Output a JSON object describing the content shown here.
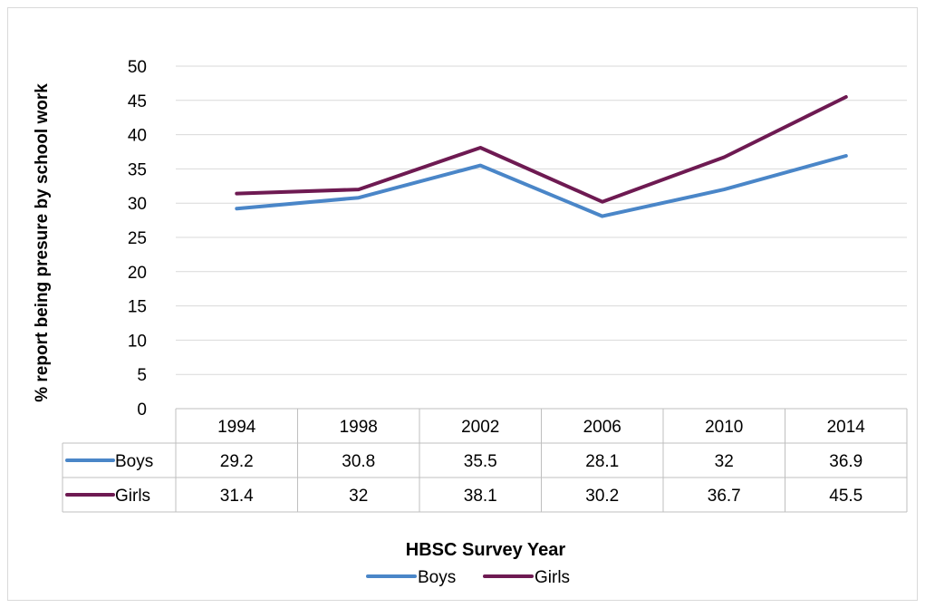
{
  "chart_data": {
    "type": "line",
    "title": "",
    "xlabel": "HBSC Survey Year",
    "ylabel": "% report being  presure by school work",
    "categories": [
      "1994",
      "1998",
      "2002",
      "2006",
      "2010",
      "2014"
    ],
    "ylim": [
      0,
      50
    ],
    "yticks": [
      0,
      5,
      10,
      15,
      20,
      25,
      30,
      35,
      40,
      45,
      50
    ],
    "grid": true,
    "legend_position": "bottom",
    "data_table": true,
    "series": [
      {
        "name": "Boys",
        "values": [
          29.2,
          30.8,
          35.5,
          28.1,
          32,
          36.9
        ],
        "labels": [
          "29.2",
          "30.8",
          "35.5",
          "28.1",
          "32",
          "36.9"
        ],
        "color": "#4a86c8"
      },
      {
        "name": "Girls",
        "values": [
          31.4,
          32,
          38.1,
          30.2,
          36.7,
          45.5
        ],
        "labels": [
          "31.4",
          "32",
          "38.1",
          "30.2",
          "36.7",
          "45.5"
        ],
        "color": "#6e1a52"
      }
    ]
  }
}
